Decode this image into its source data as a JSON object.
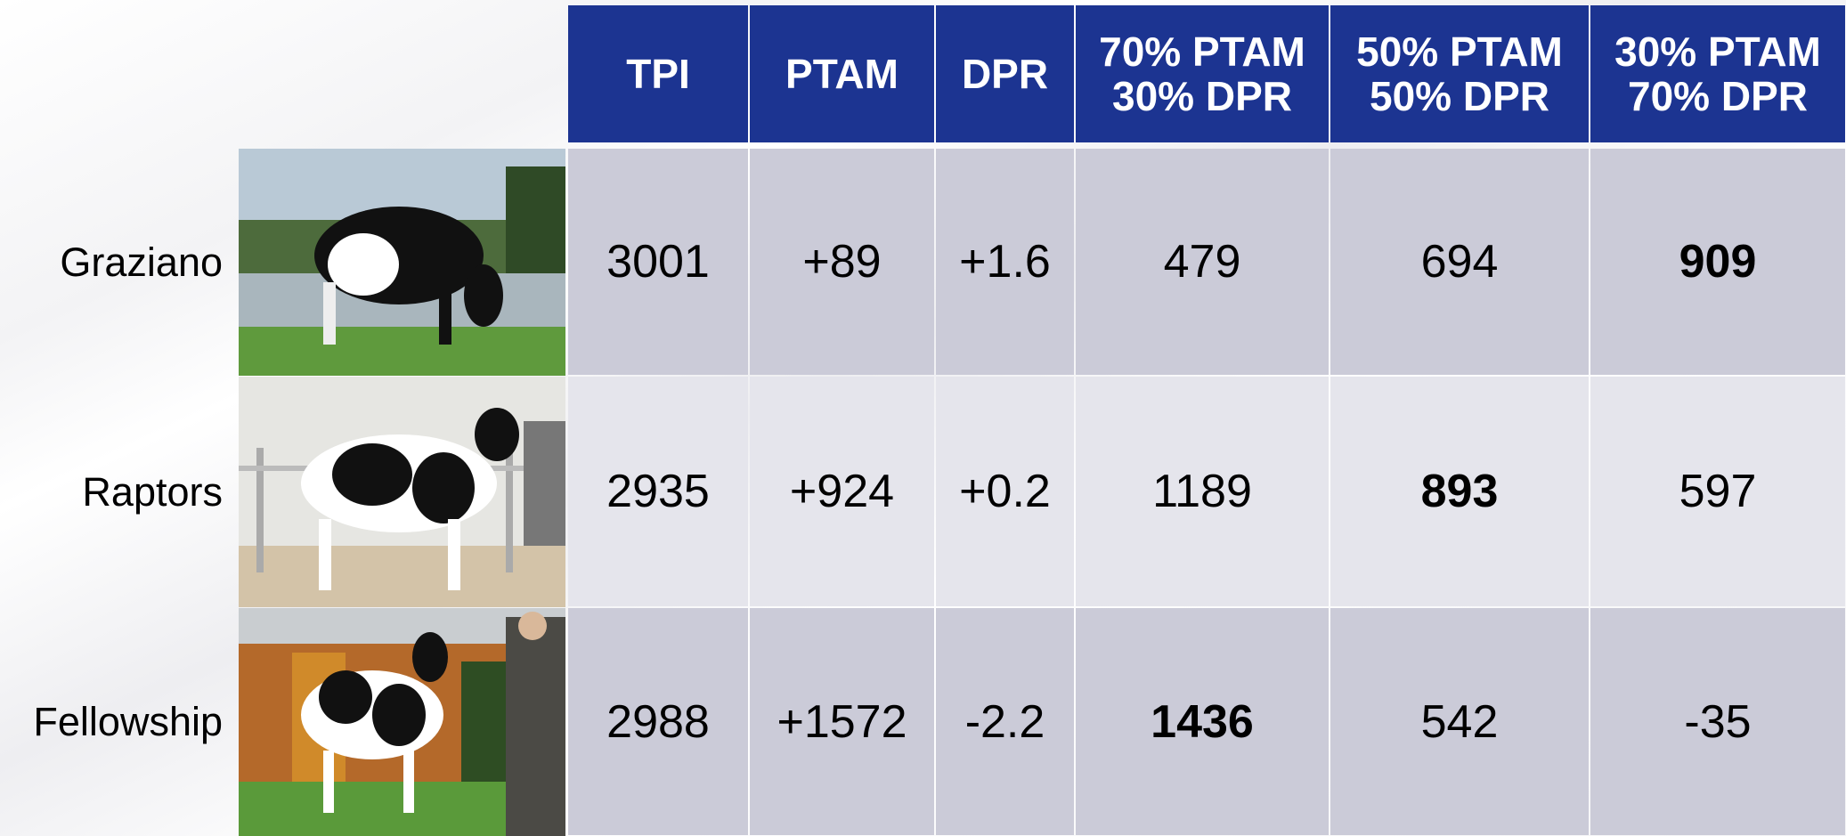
{
  "table": {
    "columns": [
      "TPI",
      "PTAM",
      "DPR",
      "70% PTAM\n30% DPR",
      "50% PTAM\n50% DPR",
      "30% PTAM\n70% DPR"
    ],
    "rows": [
      {
        "name": "Graziano",
        "cells": [
          "3001",
          "+89",
          "+1.6",
          "479",
          "694",
          "909"
        ]
      },
      {
        "name": "Raptors",
        "cells": [
          "2935",
          "+924",
          "+0.2",
          "1189",
          "893",
          "597"
        ]
      },
      {
        "name": "Fellowship",
        "cells": [
          "2988",
          "+1572",
          "-2.2",
          "1436",
          "542",
          "-35"
        ]
      }
    ]
  }
}
